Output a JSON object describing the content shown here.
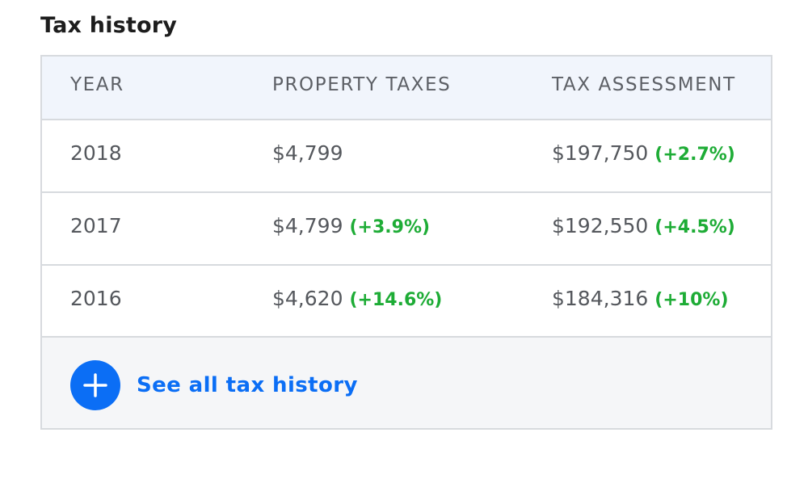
{
  "section": {
    "title": "Tax history"
  },
  "table": {
    "headers": {
      "year": "YEAR",
      "property_taxes": "PROPERTY TAXES",
      "tax_assessment": "TAX ASSESSMENT"
    },
    "rows": [
      {
        "year": "2018",
        "property_taxes": "$4,799",
        "property_taxes_change": "",
        "tax_assessment": "$197,750",
        "tax_assessment_change": "(+2.7%)"
      },
      {
        "year": "2017",
        "property_taxes": "$4,799",
        "property_taxes_change": "(+3.9%)",
        "tax_assessment": "$192,550",
        "tax_assessment_change": "(+4.5%)"
      },
      {
        "year": "2016",
        "property_taxes": "$4,620",
        "property_taxes_change": "(+14.6%)",
        "tax_assessment": "$184,316",
        "tax_assessment_change": "(+10%)"
      }
    ]
  },
  "footer": {
    "see_all_label": "See all tax history",
    "icon": "plus-icon"
  },
  "colors": {
    "accent": "#0b6ef5",
    "positive_change": "#1eac36",
    "header_bg": "#f1f5fc",
    "footer_bg": "#f5f6f8",
    "border": "#d7dade"
  }
}
